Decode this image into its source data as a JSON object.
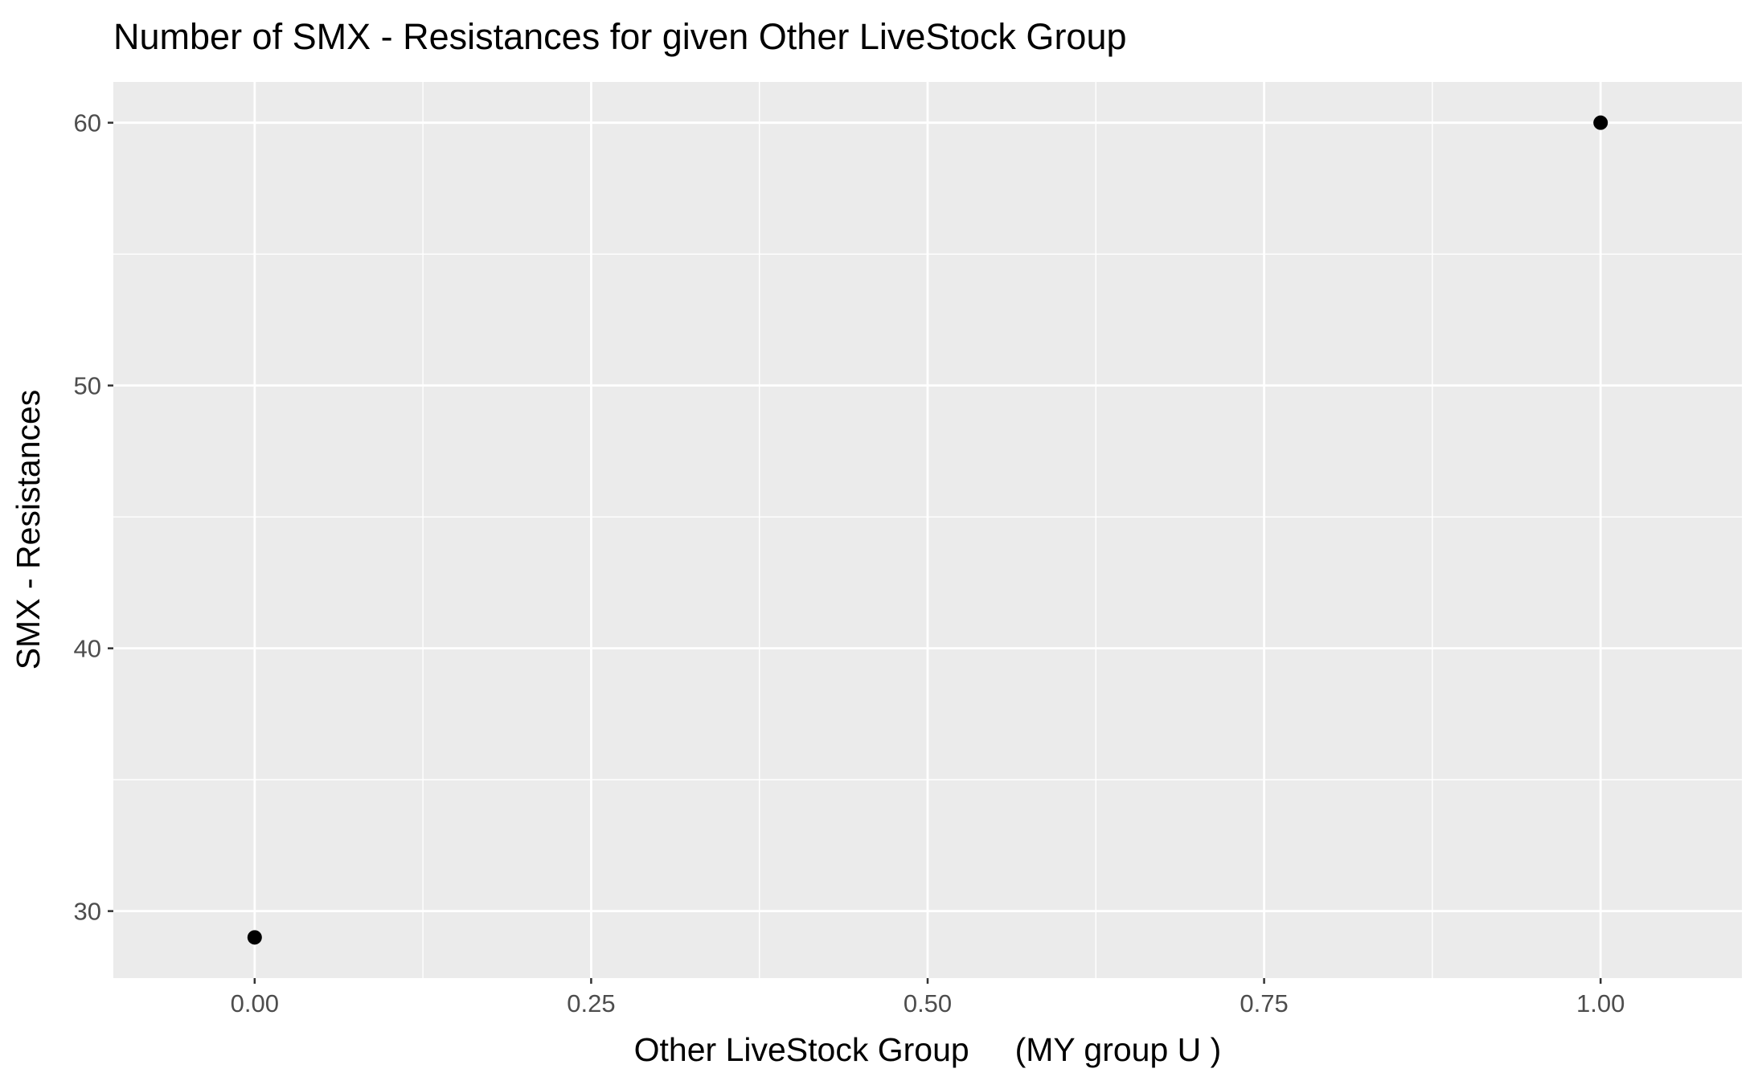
{
  "chart_data": {
    "type": "scatter",
    "title": "Number of SMX - Resistances for given Other LiveStock Group",
    "xlabel": "Other LiveStock Group     (MY group U )",
    "ylabel": "SMX - Resistances",
    "x_ticks": [
      0,
      0.25,
      0.5,
      0.75,
      1
    ],
    "x_tick_labels": [
      "0.00",
      "0.25",
      "0.50",
      "0.75",
      "1.00"
    ],
    "y_ticks": [
      30,
      40,
      50,
      60
    ],
    "y_tick_labels": [
      "30",
      "40",
      "50",
      "60"
    ],
    "xlim": [
      -0.105,
      1.105
    ],
    "ylim": [
      27.45,
      61.55
    ],
    "grid": true,
    "legend": "none",
    "colors": {
      "panel": "#ebebeb",
      "grid": "#ffffff",
      "point": "#000000",
      "tick": "#333333"
    },
    "series": [
      {
        "x": [
          0,
          1
        ],
        "y": [
          29,
          60
        ]
      }
    ]
  }
}
